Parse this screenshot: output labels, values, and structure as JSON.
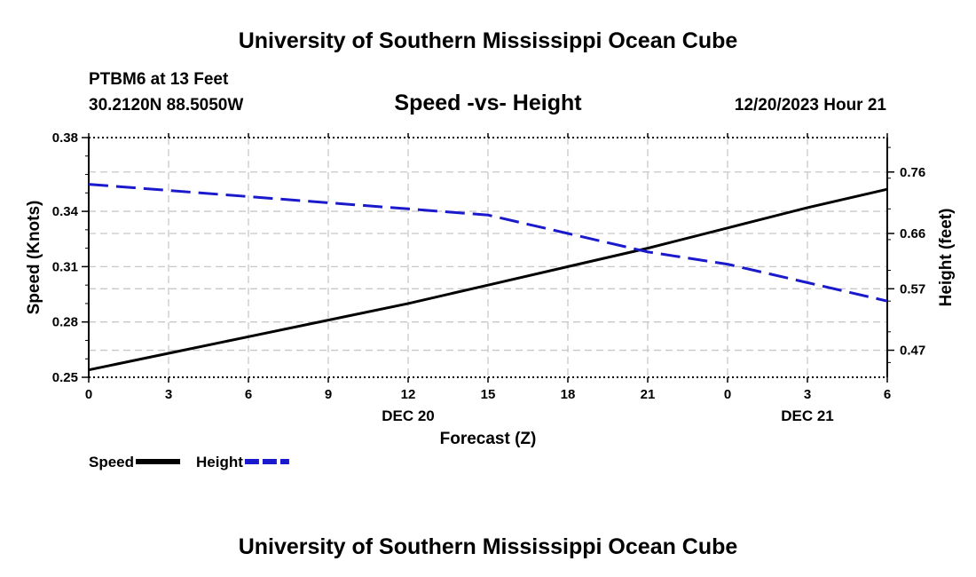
{
  "header": {
    "title": "University of Southern Mississippi Ocean Cube",
    "station": "PTBM6 at 13 Feet",
    "coords": "30.2120N  88.5050W",
    "date": "12/20/2023 Hour 21",
    "footer_title": "University of Southern Mississippi Ocean Cube"
  },
  "chart_data": {
    "type": "line",
    "title": "Speed -vs- Height",
    "xlabel": "Forecast (Z)",
    "ylabel": "Speed (Knots)",
    "y2label": "Height (feet)",
    "x": [
      0,
      3,
      6,
      9,
      12,
      15,
      18,
      21,
      24,
      27,
      30
    ],
    "x_tick_labels": [
      "0",
      "3",
      "6",
      "9",
      "12",
      "15",
      "18",
      "21",
      "0",
      "3",
      "6"
    ],
    "x_date_labels": [
      {
        "at": 12,
        "label": "DEC 20"
      },
      {
        "at": 27,
        "label": "DEC 21"
      }
    ],
    "xlim": [
      0,
      30
    ],
    "ylim": [
      0.25,
      0.38
    ],
    "y_ticks": [
      0.25,
      0.28,
      0.31,
      0.34,
      0.38
    ],
    "y_tick_labels": [
      "0.25",
      "0.28",
      "0.31",
      "0.34",
      "0.38"
    ],
    "y2lim": [
      0.426,
      0.816
    ],
    "y2_ticks": [
      0.47,
      0.57,
      0.66,
      0.76
    ],
    "y2_tick_labels": [
      "0.47",
      "0.57",
      "0.66",
      "0.76"
    ],
    "grid": true,
    "legend_position": "bottom-left",
    "series": [
      {
        "name": "Speed",
        "axis": "left",
        "color": "#000000",
        "style": "solid",
        "values": [
          0.254,
          0.263,
          0.272,
          0.281,
          0.29,
          0.3,
          0.31,
          0.32,
          0.331,
          0.342,
          0.352
        ]
      },
      {
        "name": "Height",
        "axis": "right",
        "color": "#1a1acc",
        "style": "dashed",
        "values": [
          0.74,
          0.73,
          0.72,
          0.71,
          0.7,
          0.69,
          0.66,
          0.63,
          0.61,
          0.58,
          0.55
        ]
      }
    ]
  }
}
